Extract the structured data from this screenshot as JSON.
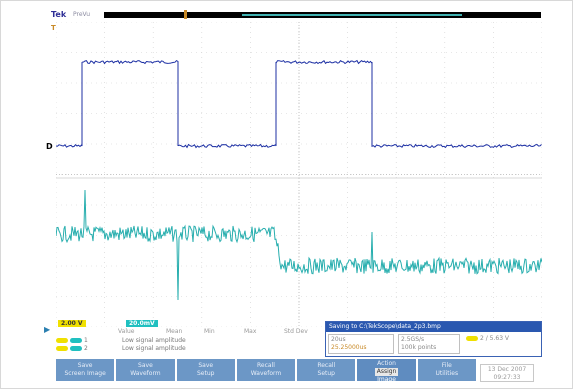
{
  "header": {
    "brand": "Tek",
    "mode": "PreVu"
  },
  "markers": {
    "ch1_ground": "D",
    "trigger_pos": "T",
    "ch2_ground": "▶"
  },
  "channels": {
    "ch1": {
      "label": "2.00 V",
      "color": "#f0e000"
    },
    "ch2": {
      "label": "20.0mV",
      "color": "#20c0c0"
    }
  },
  "measurements": {
    "headers": [
      "Value",
      "Mean",
      "Min",
      "Max",
      "Std Dev"
    ],
    "rows": [
      {
        "ch": "1",
        "value": "Low signal amplitude"
      },
      {
        "ch": "2",
        "value": "Low signal amplitude"
      }
    ]
  },
  "info": {
    "title": "Saving to C:\\TekScope\\data_2p3.bmp",
    "timebase": "20us",
    "trigger_delay": "25.25000us",
    "sample_rate": "2.5GS/s",
    "record_length": "100k points",
    "trigger_level": "2 / 5.63 V"
  },
  "menu": {
    "buttons": [
      {
        "line1": "Save",
        "line2": "Screen Image"
      },
      {
        "line1": "Save",
        "line2": "Waveform"
      },
      {
        "line1": "Save",
        "line2": "Setup"
      },
      {
        "line1": "Recall",
        "line2": "Waveform"
      },
      {
        "line1": "Recall",
        "line2": "Setup"
      }
    ],
    "action": {
      "line1": "Action",
      "line2": "Assign",
      "line3": "Image"
    },
    "file": {
      "line1": "File",
      "line2": "Utilities"
    }
  },
  "date": {
    "date": "13 Dec 2007",
    "time": "09:27:33"
  },
  "colors": {
    "ch1_trace": "#1c2fa3",
    "ch2_trace": "#27aeae",
    "menu_button": "#6c97c6",
    "info_title": "#2a58b0"
  }
}
